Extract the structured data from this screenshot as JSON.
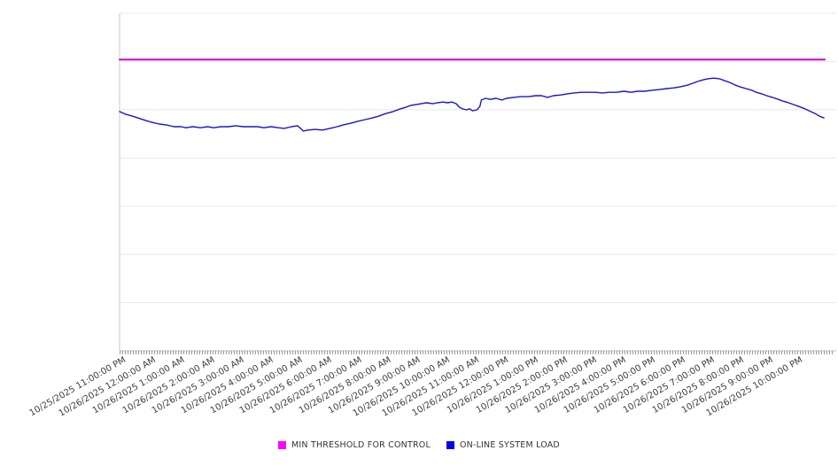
{
  "page": {
    "background": "#ffffff"
  },
  "legend": {
    "position": "bottom-center",
    "items": [
      {
        "label": "MIN THRESHOLD FOR CONTROL",
        "swatch_color": "#ff00ff"
      },
      {
        "label": "ON-LINE SYSTEM LOAD",
        "swatch_color": "#0000ee"
      }
    ]
  },
  "chart_data": {
    "type": "line",
    "title": "",
    "xlabel": "",
    "ylabel": "",
    "grid": true,
    "legend_position": "bottom",
    "x_axis": {
      "tick_interval": "1 hour",
      "categories": [
        "10/25/2025 11:00:00 PM",
        "10/26/2025 12:00:00 AM",
        "10/26/2025 1:00:00 AM",
        "10/26/2025 2:00:00 AM",
        "10/26/2025 3:00:00 AM",
        "10/26/2025 4:00:00 AM",
        "10/26/2025 5:00:00 AM",
        "10/26/2025 6:00:00 AM",
        "10/26/2025 7:00:00 AM",
        "10/26/2025 8:00:00 AM",
        "10/26/2025 9:00:00 AM",
        "10/26/2025 10:00:00 AM",
        "10/26/2025 11:00:00 AM",
        "10/26/2025 12:00:00 PM",
        "10/26/2025 1:00:00 PM",
        "10/26/2025 2:00:00 PM",
        "10/26/2025 3:00:00 PM",
        "10/26/2025 4:00:00 PM",
        "10/26/2025 5:00:00 PM",
        "10/26/2025 6:00:00 PM",
        "10/26/2025 7:00:00 PM",
        "10/26/2025 8:00:00 PM",
        "10/26/2025 9:00:00 PM",
        "10/26/2025 10:00:00 PM"
      ]
    },
    "y_axis": {
      "labels_visible": false,
      "note": "no y-axis tick labels shown; series values are normalized 0-1 of plot height",
      "gridline_divisions": 7,
      "range": [
        0,
        1
      ]
    },
    "series": [
      {
        "name": "MIN THRESHOLD FOR CONTROL",
        "color": "#d400d4",
        "stroke_width": 2,
        "points": [
          [
            0,
            0.863
          ],
          [
            23.98,
            0.863
          ]
        ]
      },
      {
        "name": "ON-LINE SYSTEM LOAD",
        "color": "#1717c9",
        "stroke_width": 1.4,
        "points": [
          [
            0,
            0.709
          ],
          [
            0.2,
            0.701
          ],
          [
            0.45,
            0.695
          ],
          [
            0.7,
            0.688
          ],
          [
            0.9,
            0.682
          ],
          [
            1.1,
            0.677
          ],
          [
            1.35,
            0.672
          ],
          [
            1.6,
            0.669
          ],
          [
            1.85,
            0.664
          ],
          [
            2.1,
            0.664
          ],
          [
            2.25,
            0.661
          ],
          [
            2.5,
            0.664
          ],
          [
            2.75,
            0.661
          ],
          [
            3.0,
            0.664
          ],
          [
            3.2,
            0.661
          ],
          [
            3.45,
            0.664
          ],
          [
            3.7,
            0.664
          ],
          [
            3.95,
            0.667
          ],
          [
            4.2,
            0.664
          ],
          [
            4.45,
            0.664
          ],
          [
            4.7,
            0.664
          ],
          [
            4.9,
            0.661
          ],
          [
            5.15,
            0.664
          ],
          [
            5.4,
            0.661
          ],
          [
            5.6,
            0.659
          ],
          [
            5.85,
            0.664
          ],
          [
            6.05,
            0.667
          ],
          [
            6.15,
            0.659
          ],
          [
            6.25,
            0.651
          ],
          [
            6.4,
            0.654
          ],
          [
            6.65,
            0.656
          ],
          [
            6.9,
            0.654
          ],
          [
            7.15,
            0.659
          ],
          [
            7.4,
            0.664
          ],
          [
            7.6,
            0.669
          ],
          [
            7.85,
            0.674
          ],
          [
            8.1,
            0.68
          ],
          [
            8.35,
            0.685
          ],
          [
            8.6,
            0.69
          ],
          [
            8.8,
            0.695
          ],
          [
            9.05,
            0.703
          ],
          [
            9.3,
            0.709
          ],
          [
            9.55,
            0.717
          ],
          [
            9.75,
            0.722
          ],
          [
            9.9,
            0.727
          ],
          [
            10.1,
            0.73
          ],
          [
            10.25,
            0.732
          ],
          [
            10.45,
            0.735
          ],
          [
            10.65,
            0.732
          ],
          [
            10.8,
            0.735
          ],
          [
            11.0,
            0.737
          ],
          [
            11.15,
            0.735
          ],
          [
            11.3,
            0.737
          ],
          [
            11.45,
            0.732
          ],
          [
            11.55,
            0.722
          ],
          [
            11.65,
            0.717
          ],
          [
            11.8,
            0.714
          ],
          [
            11.9,
            0.717
          ],
          [
            12.0,
            0.711
          ],
          [
            12.15,
            0.714
          ],
          [
            12.25,
            0.724
          ],
          [
            12.3,
            0.743
          ],
          [
            12.45,
            0.748
          ],
          [
            12.6,
            0.745
          ],
          [
            12.8,
            0.748
          ],
          [
            13.0,
            0.743
          ],
          [
            13.15,
            0.748
          ],
          [
            13.4,
            0.751
          ],
          [
            13.65,
            0.753
          ],
          [
            13.9,
            0.753
          ],
          [
            14.15,
            0.756
          ],
          [
            14.35,
            0.756
          ],
          [
            14.55,
            0.751
          ],
          [
            14.75,
            0.756
          ],
          [
            15.0,
            0.758
          ],
          [
            15.2,
            0.761
          ],
          [
            15.45,
            0.764
          ],
          [
            15.7,
            0.766
          ],
          [
            15.95,
            0.766
          ],
          [
            16.2,
            0.766
          ],
          [
            16.4,
            0.764
          ],
          [
            16.65,
            0.766
          ],
          [
            16.9,
            0.766
          ],
          [
            17.15,
            0.769
          ],
          [
            17.4,
            0.766
          ],
          [
            17.6,
            0.769
          ],
          [
            17.85,
            0.769
          ],
          [
            18.1,
            0.772
          ],
          [
            18.35,
            0.774
          ],
          [
            18.6,
            0.777
          ],
          [
            18.85,
            0.779
          ],
          [
            19.05,
            0.782
          ],
          [
            19.3,
            0.787
          ],
          [
            19.5,
            0.793
          ],
          [
            19.65,
            0.798
          ],
          [
            19.85,
            0.803
          ],
          [
            20.0,
            0.806
          ],
          [
            20.2,
            0.808
          ],
          [
            20.4,
            0.806
          ],
          [
            20.55,
            0.801
          ],
          [
            20.75,
            0.795
          ],
          [
            20.95,
            0.787
          ],
          [
            21.1,
            0.782
          ],
          [
            21.3,
            0.777
          ],
          [
            21.5,
            0.772
          ],
          [
            21.65,
            0.766
          ],
          [
            21.85,
            0.761
          ],
          [
            22.0,
            0.756
          ],
          [
            22.2,
            0.751
          ],
          [
            22.4,
            0.745
          ],
          [
            22.55,
            0.74
          ],
          [
            22.75,
            0.735
          ],
          [
            22.9,
            0.73
          ],
          [
            23.1,
            0.724
          ],
          [
            23.3,
            0.717
          ],
          [
            23.45,
            0.711
          ],
          [
            23.65,
            0.703
          ],
          [
            23.8,
            0.695
          ],
          [
            23.95,
            0.69
          ]
        ]
      }
    ]
  },
  "plot_style": {
    "gridline_color": "#e8e8e8",
    "plot_border_color": "#c8c8c8",
    "axis_line_color": "#bbbbbb",
    "tick_color": "#9a9a9a",
    "tick_label_color": "#3c3c3c"
  }
}
